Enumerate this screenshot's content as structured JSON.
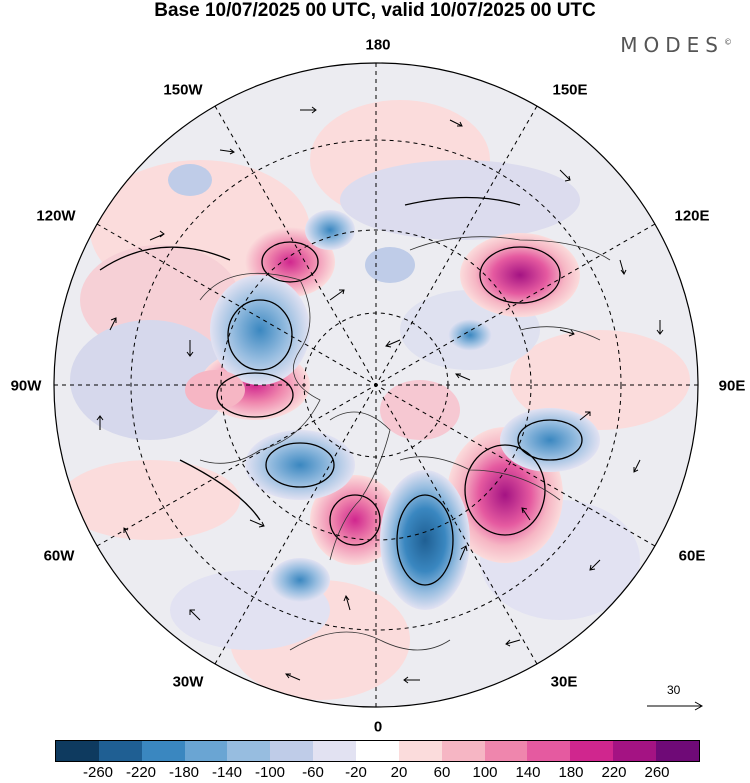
{
  "title": "Base 10/07/2025 00 UTC, valid 10/07/2025 00 UTC",
  "brand": "MODES",
  "brand_mark": "©",
  "map": {
    "projection": "north-polar-stereographic",
    "longitude_labels": {
      "top": "180",
      "bottom": "0",
      "left": "90W",
      "right": "90E",
      "upper_left_outer": "150W",
      "upper_left_inner": "120W",
      "lower_left_inner": "60W",
      "lower_left_outer": "30W",
      "upper_right_outer": "150E",
      "upper_right_inner": "120E",
      "lower_right_inner": "60E",
      "lower_right_outer": "30E"
    }
  },
  "vector_scale": {
    "value": "30",
    "icon": "reference-arrow-icon"
  },
  "colorbar": {
    "colors": [
      "#0e3a5f",
      "#1f5f93",
      "#3a87c0",
      "#6aa5d3",
      "#97bde0",
      "#bfcce8",
      "#e2e2f2",
      "#ffffff",
      "#fbdcdc",
      "#f6b6c4",
      "#ef86ad",
      "#e55aa0",
      "#d0268e",
      "#a41383",
      "#6f0a77"
    ],
    "tick_labels": [
      "-260",
      "-220",
      "-180",
      "-140",
      "-100",
      "-60",
      "-20",
      "20",
      "60",
      "100",
      "140",
      "180",
      "220",
      "260"
    ]
  }
}
